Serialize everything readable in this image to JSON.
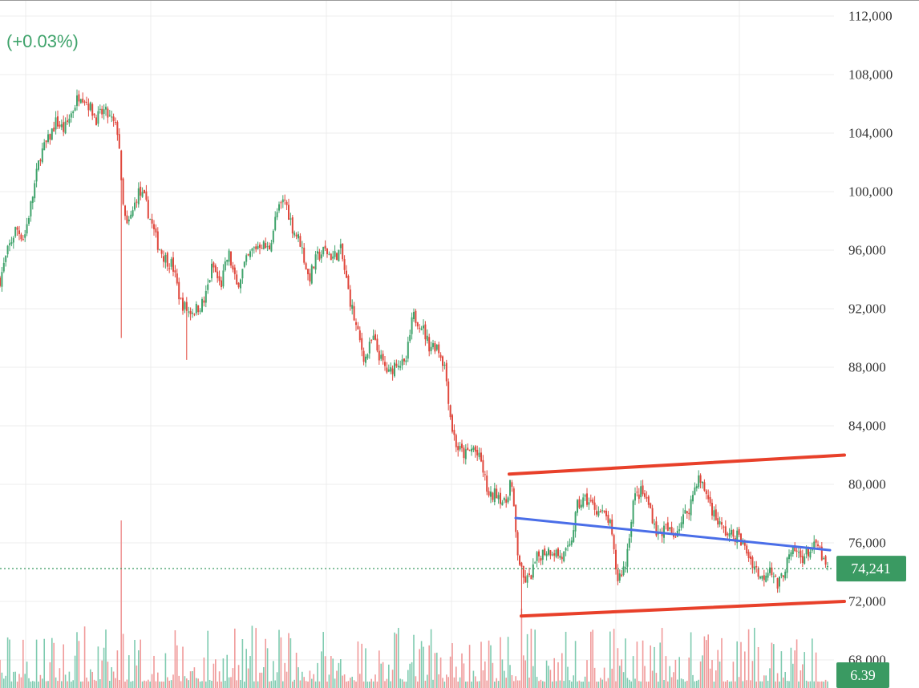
{
  "header": {
    "change_text": "(+0.03%)"
  },
  "price_badge": {
    "value_text": "74,241",
    "color": "#3a9a62"
  },
  "volume_badge": {
    "value_text": "6.39",
    "color": "#3a9a62"
  },
  "colors": {
    "up": "#3fa36b",
    "down": "#e0473c",
    "volume_up": "#7fcbb0",
    "volume_down": "#f09a9a",
    "grid": "#ececec",
    "trend_upper_lower": "#e8402a",
    "trend_mid": "#4a6ee8"
  },
  "chart_data": {
    "type": "candlestick",
    "title": "",
    "xlabel": "",
    "ylabel": "",
    "ylim": [
      67500,
      112500
    ],
    "yticks": [
      68000,
      72000,
      76000,
      80000,
      84000,
      88000,
      92000,
      96000,
      100000,
      104000,
      108000,
      112000
    ],
    "ytick_labels": [
      "68,000",
      "72,000",
      "76,000",
      "80,000",
      "84,000",
      "88,000",
      "92,000",
      "96,000",
      "100,000",
      "104,000",
      "108,000",
      "112,000"
    ],
    "grid": true,
    "last_price": 74241,
    "last_volume": 6.39,
    "x_range": [
      0,
      1040
    ],
    "close_path": [
      [
        0,
        94000
      ],
      [
        10,
        96000
      ],
      [
        20,
        97500
      ],
      [
        30,
        96800
      ],
      [
        40,
        99500
      ],
      [
        50,
        102500
      ],
      [
        60,
        103500
      ],
      [
        70,
        104800
      ],
      [
        80,
        104200
      ],
      [
        90,
        105500
      ],
      [
        100,
        106800
      ],
      [
        110,
        106000
      ],
      [
        120,
        105000
      ],
      [
        130,
        105500
      ],
      [
        140,
        104800
      ],
      [
        148,
        104000
      ],
      [
        152,
        99500
      ],
      [
        158,
        97500
      ],
      [
        165,
        98500
      ],
      [
        172,
        100000
      ],
      [
        180,
        99500
      ],
      [
        188,
        98000
      ],
      [
        196,
        96500
      ],
      [
        205,
        95500
      ],
      [
        215,
        95000
      ],
      [
        225,
        92500
      ],
      [
        235,
        91800
      ],
      [
        245,
        92000
      ],
      [
        255,
        92500
      ],
      [
        265,
        95000
      ],
      [
        275,
        93500
      ],
      [
        285,
        95800
      ],
      [
        295,
        93500
      ],
      [
        305,
        95000
      ],
      [
        315,
        96000
      ],
      [
        325,
        96500
      ],
      [
        335,
        96000
      ],
      [
        345,
        98500
      ],
      [
        355,
        99500
      ],
      [
        365,
        97500
      ],
      [
        375,
        96500
      ],
      [
        385,
        94000
      ],
      [
        395,
        95500
      ],
      [
        405,
        96000
      ],
      [
        415,
        95500
      ],
      [
        425,
        96000
      ],
      [
        435,
        93000
      ],
      [
        445,
        90500
      ],
      [
        455,
        88500
      ],
      [
        465,
        90000
      ],
      [
        475,
        88500
      ],
      [
        485,
        87500
      ],
      [
        495,
        88500
      ],
      [
        505,
        88000
      ],
      [
        515,
        91500
      ],
      [
        525,
        91000
      ],
      [
        535,
        89500
      ],
      [
        545,
        89500
      ],
      [
        555,
        88000
      ],
      [
        563,
        84000
      ],
      [
        570,
        82500
      ],
      [
        580,
        82000
      ],
      [
        590,
        82500
      ],
      [
        600,
        81500
      ],
      [
        610,
        79000
      ],
      [
        620,
        79500
      ],
      [
        630,
        78500
      ],
      [
        637,
        80500
      ],
      [
        645,
        75500
      ],
      [
        652,
        73500
      ],
      [
        660,
        73500
      ],
      [
        670,
        75000
      ],
      [
        680,
        75500
      ],
      [
        690,
        75500
      ],
      [
        700,
        75000
      ],
      [
        710,
        75500
      ],
      [
        720,
        78500
      ],
      [
        730,
        79000
      ],
      [
        740,
        78500
      ],
      [
        750,
        78000
      ],
      [
        760,
        77500
      ],
      [
        770,
        73500
      ],
      [
        780,
        74500
      ],
      [
        790,
        79000
      ],
      [
        800,
        79500
      ],
      [
        810,
        78500
      ],
      [
        820,
        76500
      ],
      [
        830,
        77000
      ],
      [
        840,
        76500
      ],
      [
        850,
        77500
      ],
      [
        860,
        78500
      ],
      [
        870,
        80500
      ],
      [
        880,
        79500
      ],
      [
        890,
        78000
      ],
      [
        900,
        77000
      ],
      [
        910,
        76500
      ],
      [
        920,
        76500
      ],
      [
        930,
        75500
      ],
      [
        940,
        74500
      ],
      [
        950,
        73500
      ],
      [
        960,
        74500
      ],
      [
        970,
        73000
      ],
      [
        980,
        74500
      ],
      [
        990,
        75500
      ],
      [
        1000,
        75000
      ],
      [
        1010,
        75500
      ],
      [
        1020,
        75800
      ],
      [
        1030,
        74241
      ]
    ],
    "spikes": [
      {
        "x": 152,
        "low": 90000,
        "volume_emphasis": 0.95
      },
      {
        "x": 232,
        "low": 88500
      },
      {
        "x": 650,
        "low": 71000,
        "volume_emphasis": 0.45
      }
    ],
    "trendlines": [
      {
        "name": "",
        "color": "#e8402a",
        "points": [
          [
            635,
            80700
          ],
          [
            1053,
            82000
          ]
        ]
      },
      {
        "name": "",
        "color": "#e8402a",
        "points": [
          [
            650,
            71000
          ],
          [
            1053,
            72000
          ]
        ]
      },
      {
        "name": "",
        "color": "#4a6ee8",
        "points": [
          [
            643,
            77700
          ],
          [
            1035,
            75500
          ]
        ]
      }
    ]
  }
}
